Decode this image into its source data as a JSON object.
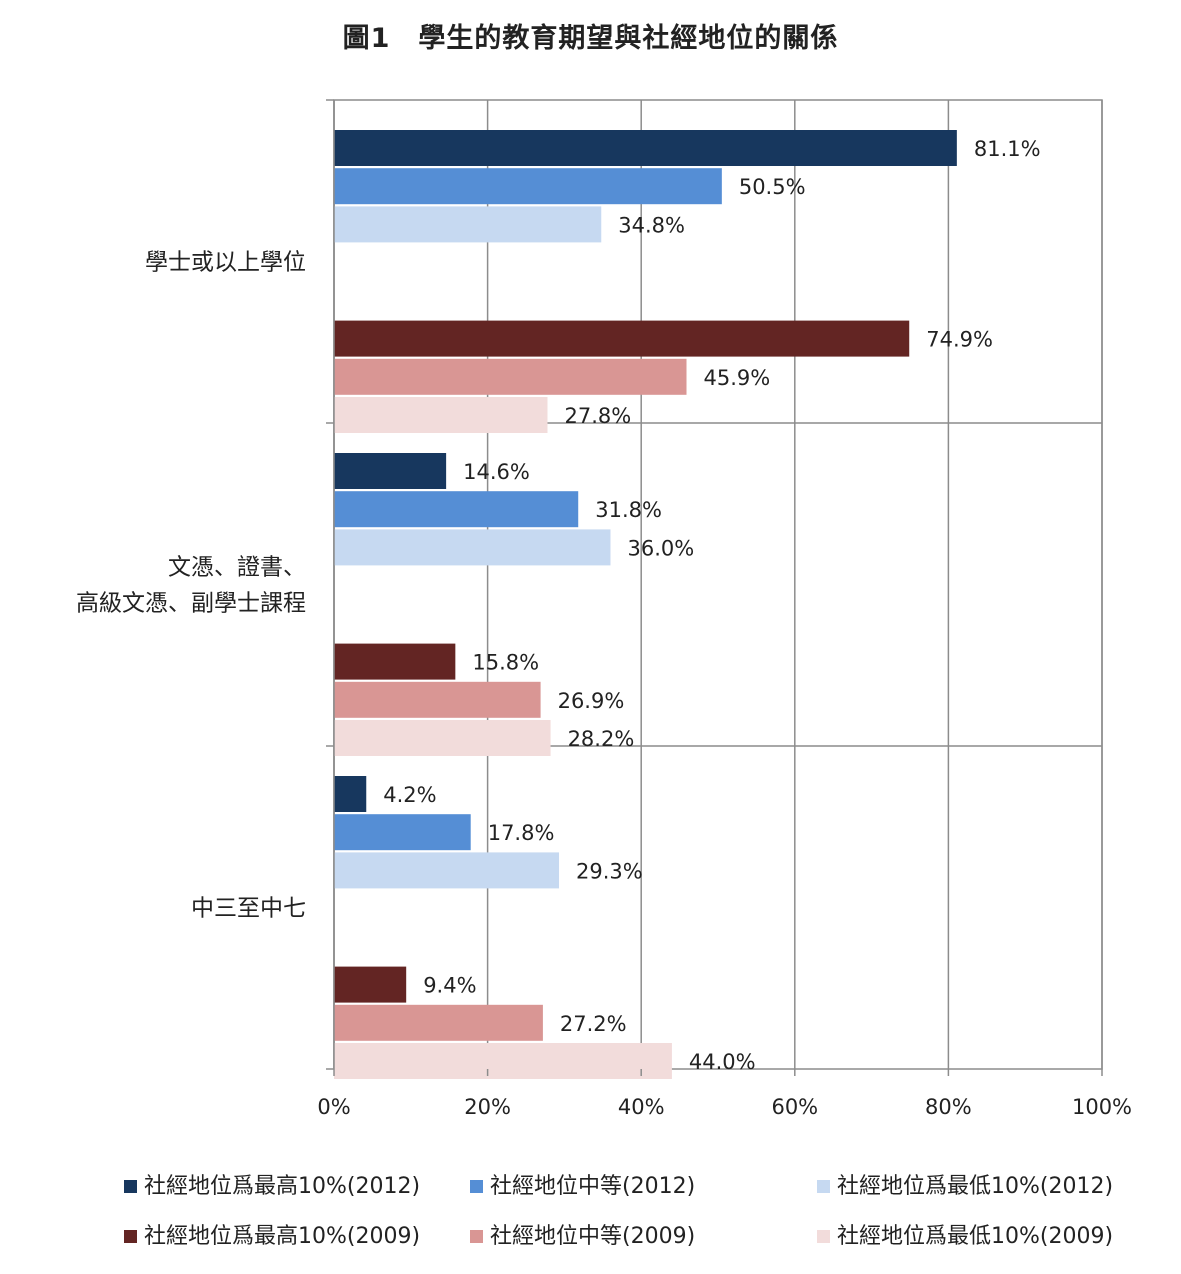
{
  "title": "圖1　學生的教育期望與社經地位的關係",
  "chart_data": {
    "type": "bar",
    "orientation": "horizontal",
    "title": "圖1　學生的教育期望與社經地位的關係",
    "categories": [
      [
        "學士或以上學位"
      ],
      [
        "文憑、證書、",
        "高級文憑、副學士課程"
      ],
      [
        "中三至中七"
      ]
    ],
    "series": [
      {
        "name": "社經地位爲最高10%(2012)",
        "color": "#17375e",
        "values": [
          81.1,
          14.6,
          4.2
        ],
        "labels": [
          "81.1%",
          "14.6%",
          "4.2%"
        ]
      },
      {
        "name": "社經地位中等(2012)",
        "color": "#558ed5",
        "values": [
          50.5,
          31.8,
          17.8
        ],
        "labels": [
          "50.5%",
          "31.8%",
          "17.8%"
        ]
      },
      {
        "name": "社經地位爲最低10%(2012)",
        "color": "#c6d9f1",
        "values": [
          34.8,
          36.0,
          29.3
        ],
        "labels": [
          "34.8%",
          "36.0%",
          "29.3%"
        ]
      },
      {
        "name": "社經地位爲最高10%(2009)",
        "color": "#632523",
        "values": [
          74.9,
          15.8,
          9.4
        ],
        "labels": [
          "74.9%",
          "15.8%",
          "9.4%"
        ]
      },
      {
        "name": "社經地位中等(2009)",
        "color": "#d99694",
        "values": [
          45.9,
          26.9,
          27.2
        ],
        "labels": [
          "45.9%",
          "26.9%",
          "27.2%"
        ]
      },
      {
        "name": "社經地位爲最低10%(2009)",
        "color": "#f2dcdb",
        "values": [
          27.8,
          28.2,
          44.0
        ],
        "labels": [
          "27.8%",
          "28.2%",
          "44.0%"
        ]
      }
    ],
    "xlim": [
      0,
      100
    ],
    "xticks": [
      "0%",
      "20%",
      "40%",
      "60%",
      "80%",
      "100%"
    ],
    "grid": true,
    "legend_position": "bottom"
  }
}
